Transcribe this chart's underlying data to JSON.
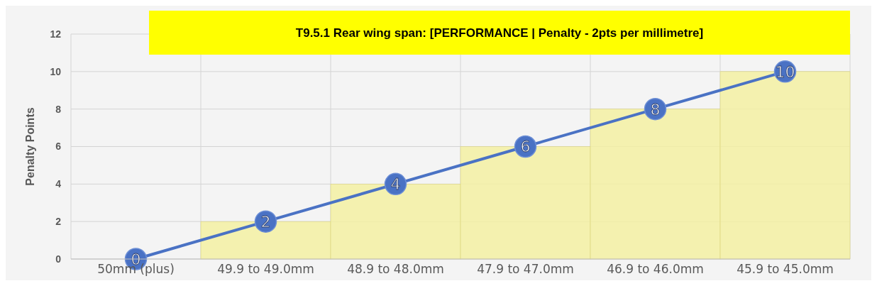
{
  "chart_data": {
    "type": "bar",
    "title": "T9.5.1 Rear wing span: [PERFORMANCE | Penalty - 2pts per millimetre]",
    "ylabel": "Penalty Points",
    "categories": [
      "50mm (plus)",
      "49.9 to 49.0mm",
      "48.9 to 48.0mm",
      "47.9 to 47.0mm",
      "46.9 to 46.0mm",
      "45.9 to 45.0mm"
    ],
    "series": [
      {
        "color": "#f3f0a2",
        "values": [
          0,
          2,
          4,
          6,
          8,
          10
        ]
      },
      {
        "type": "line",
        "color": "#4a72c4",
        "values": [
          0,
          2,
          4,
          6,
          8,
          10
        ],
        "marker": "circle",
        "data_labels": true
      }
    ],
    "ylim": [
      0,
      12
    ],
    "yticks": [
      0,
      2,
      4,
      6,
      8,
      10,
      12
    ],
    "grid": true
  }
}
